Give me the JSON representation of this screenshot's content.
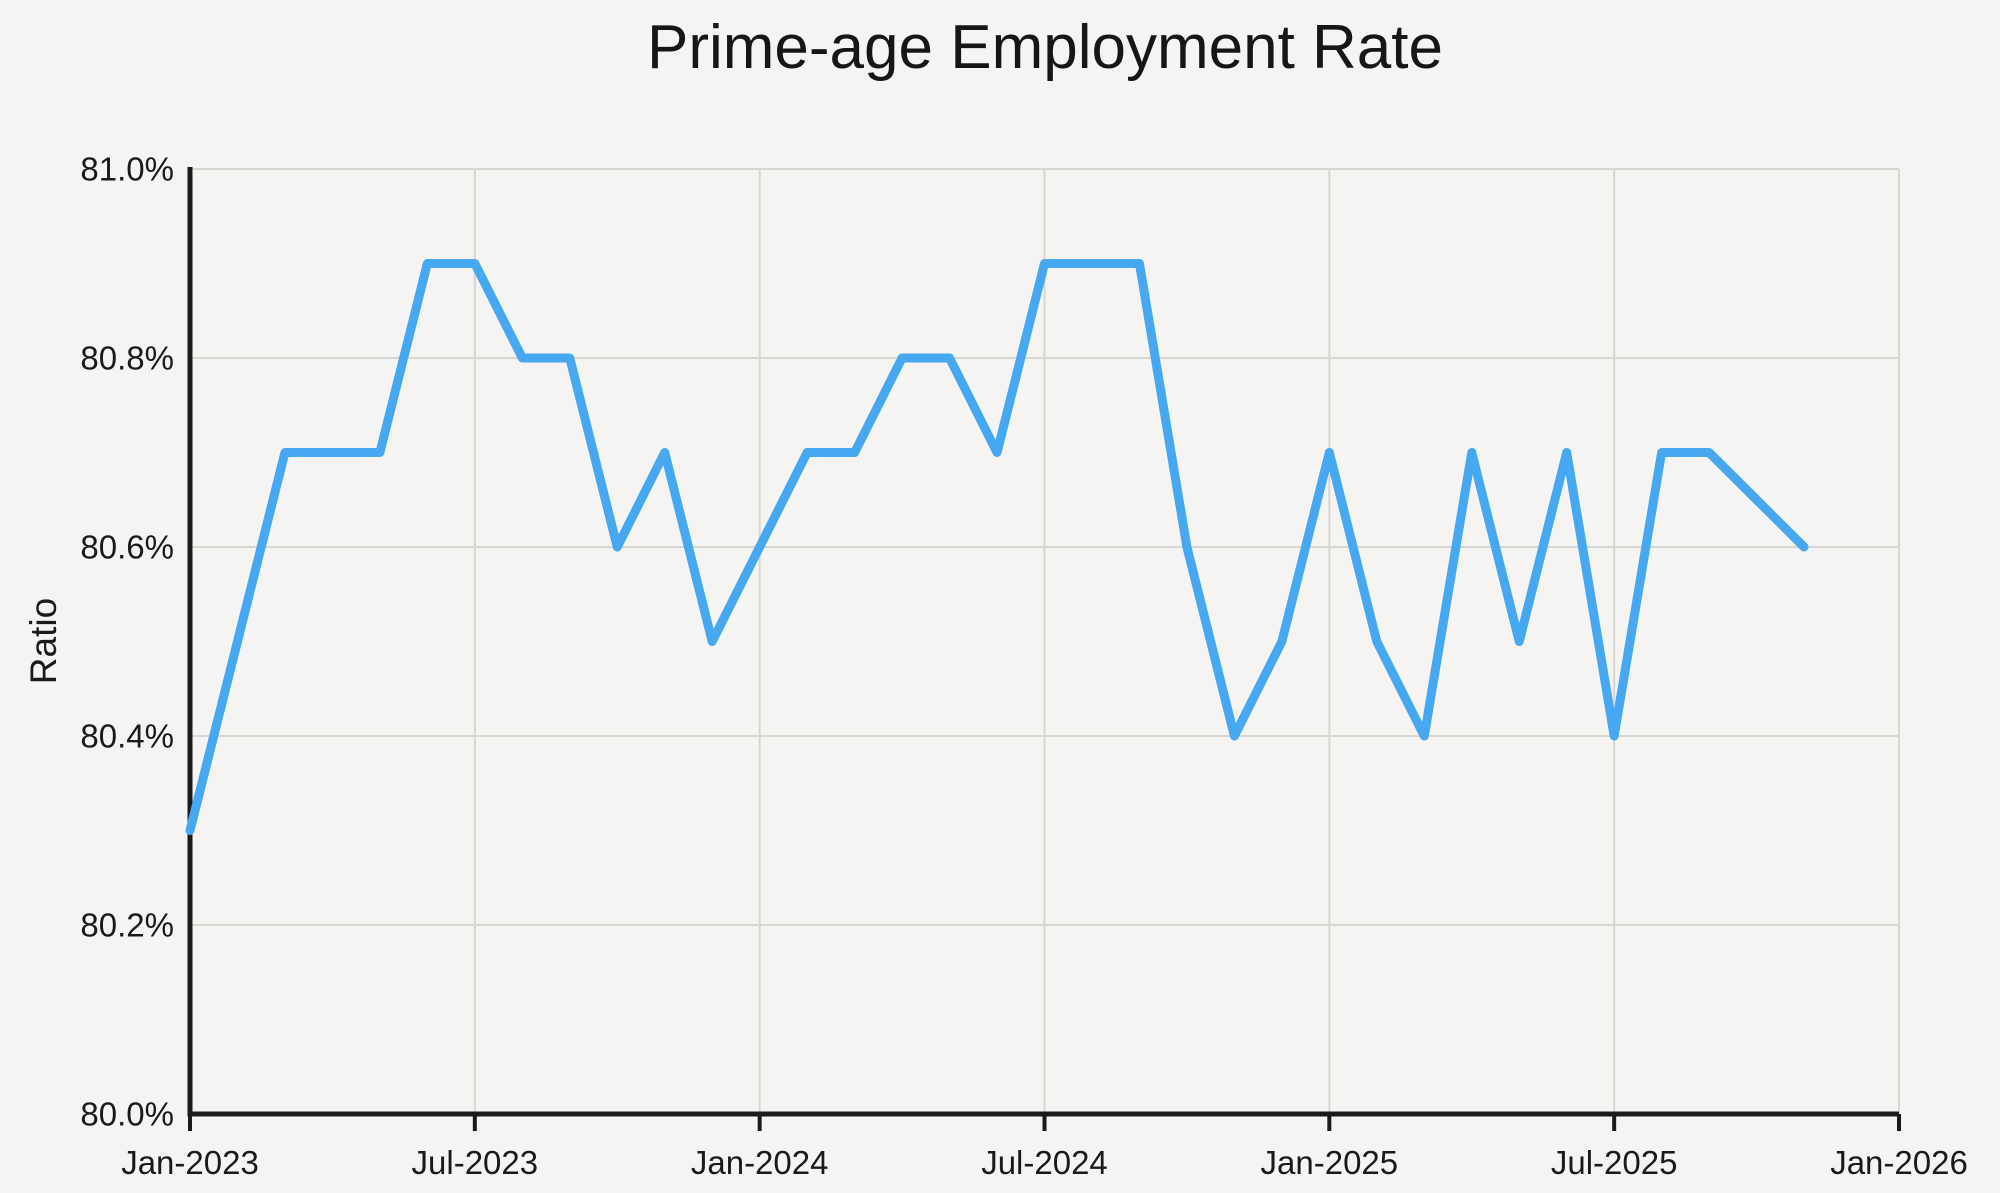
{
  "title": "Prime-age Employment Rate",
  "colors": {
    "background": "#f5f4f2",
    "line": "#45a8f1",
    "grid": "#d8d6d3",
    "axis": "#1a1a1a",
    "text": "#1a1a1a"
  },
  "y_axis": {
    "title": "Ratio",
    "tick_labels": [
      "81.0%",
      "80.8%",
      "80.6%",
      "80.4%",
      "80.2%",
      "80.0%"
    ],
    "tick_values": [
      81.0,
      80.8,
      80.6,
      80.4,
      80.2,
      80.0
    ]
  },
  "x_axis": {
    "tick_labels": [
      "Jan-2023",
      "Jul-2023",
      "Jan-2024",
      "Jul-2024",
      "Jan-2025",
      "Jul-2025",
      "Jan-2026"
    ],
    "tick_month_index": [
      0,
      6,
      12,
      18,
      24,
      30,
      36
    ]
  },
  "chart_data": {
    "type": "line",
    "title": "Prime-age Employment Rate",
    "xlabel": "",
    "ylabel": "Ratio",
    "ylim": [
      80.0,
      81.0
    ],
    "x_span_months": 36,
    "grid": true,
    "legend": false,
    "x": [
      "Jan-2023",
      "Feb-2023",
      "Mar-2023",
      "Apr-2023",
      "May-2023",
      "Jun-2023",
      "Jul-2023",
      "Aug-2023",
      "Sep-2023",
      "Oct-2023",
      "Nov-2023",
      "Dec-2023",
      "Jan-2024",
      "Feb-2024",
      "Mar-2024",
      "Apr-2024",
      "May-2024",
      "Jun-2024",
      "Jul-2024",
      "Aug-2024",
      "Sep-2024",
      "Oct-2024",
      "Nov-2024",
      "Dec-2024",
      "Jan-2025",
      "Feb-2025",
      "Mar-2025",
      "Apr-2025",
      "May-2025",
      "Jun-2025",
      "Jul-2025",
      "Aug-2025",
      "Sep-2025",
      "Oct-2025",
      "Nov-2025"
    ],
    "values": [
      80.3,
      80.5,
      80.7,
      80.7,
      80.7,
      80.9,
      80.9,
      80.8,
      80.8,
      80.6,
      80.7,
      80.5,
      80.6,
      80.7,
      80.7,
      80.8,
      80.8,
      80.7,
      80.9,
      80.9,
      80.9,
      80.6,
      80.4,
      80.5,
      80.7,
      80.5,
      80.4,
      80.7,
      80.5,
      80.7,
      80.4,
      80.7,
      80.7,
      80.65,
      80.6
    ],
    "series_name": "Prime-age employment rate"
  }
}
